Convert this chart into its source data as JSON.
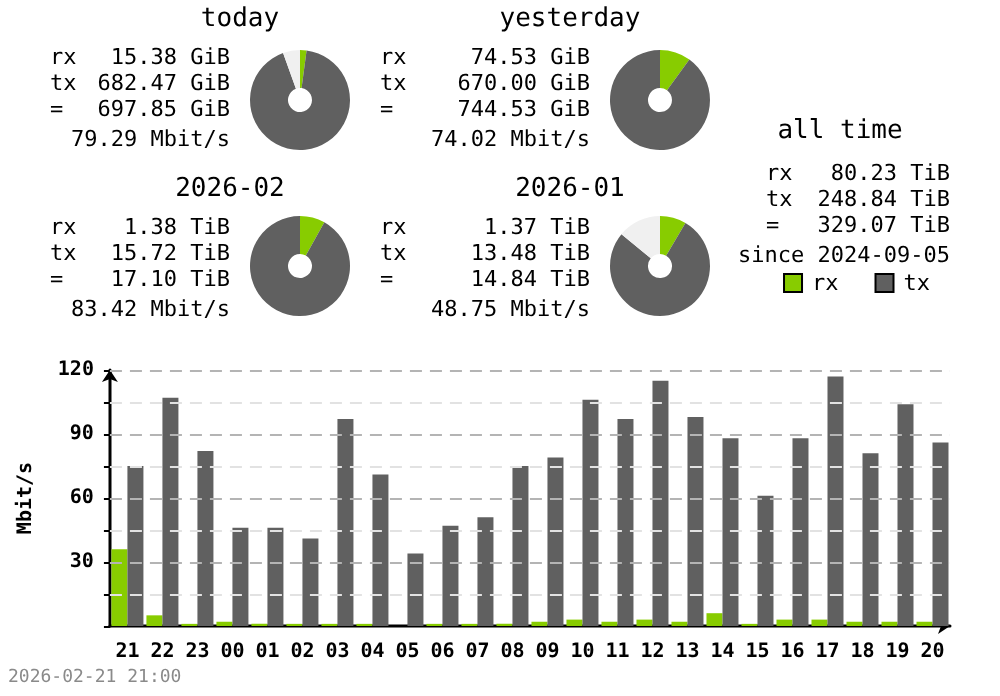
{
  "chart_data": [
    {
      "type": "donut",
      "title": "today",
      "categories": [
        null,
        null,
        null
      ],
      "values": [
        2.1,
        92.4,
        5.5
      ],
      "colors": [
        "#88cc00",
        "#606060",
        "#f0f0f0"
      ],
      "annotations": [
        "rx 15.38 GiB",
        "tx 682.47 GiB",
        "= 697.85 GiB",
        "79.29 Mbit/s"
      ]
    },
    {
      "type": "donut",
      "title": "yesterday",
      "categories": [
        null,
        null
      ],
      "values": [
        10.0,
        90.0
      ],
      "colors": [
        "#88cc00",
        "#606060"
      ],
      "annotations": [
        "rx 74.53 GiB",
        "tx 670.00 GiB",
        "= 744.53 GiB",
        "74.02 Mbit/s"
      ]
    },
    {
      "type": "other",
      "title": "all time",
      "annotations": [
        "rx 80.23 TiB",
        "tx 248.84 TiB",
        "= 329.07 TiB",
        "since 2024-09-05"
      ]
    },
    {
      "type": "donut",
      "title": "2026-02",
      "categories": [
        null,
        null
      ],
      "values": [
        8.1,
        91.9
      ],
      "colors": [
        "#88cc00",
        "#606060"
      ],
      "annotations": [
        "rx 1.38 TiB",
        "tx 15.72 TiB",
        "= 17.10 TiB",
        "83.42 Mbit/s"
      ]
    },
    {
      "type": "donut",
      "title": "2026-01",
      "categories": [
        null,
        null,
        null
      ],
      "values": [
        8.5,
        77.5,
        14
      ],
      "colors": [
        "#88cc00",
        "#606060",
        "#f0f0f0"
      ],
      "annotations": [
        "rx 1.37 TiB",
        "tx 13.48 TiB",
        "= 14.84 TiB",
        "48.75 Mbit/s"
      ]
    },
    {
      "type": "bar",
      "ylabel": "Mbit/s",
      "categories": [
        "21",
        "22",
        "23",
        "00",
        "01",
        "02",
        "03",
        "04",
        "05",
        "06",
        "07",
        "08",
        "09",
        "10",
        "11",
        "12",
        "13",
        "14",
        "15",
        "16",
        "17",
        "18",
        "19",
        "20"
      ],
      "series": [
        {
          "name": "rx",
          "color": "#88cc00",
          "values": [
            36,
            5,
            1,
            2,
            1,
            1,
            1,
            1,
            0,
            1,
            1,
            1,
            2,
            3,
            2,
            3,
            2,
            6,
            1,
            3,
            3,
            2,
            2,
            2
          ]
        },
        {
          "name": "tx",
          "color": "#606060",
          "values": [
            75,
            107,
            82,
            46,
            46,
            41,
            97,
            71,
            34,
            47,
            51,
            75,
            79,
            106,
            97,
            115,
            98,
            88,
            61,
            88,
            117,
            81,
            104,
            86
          ]
        }
      ],
      "ylim": [
        0,
        120
      ],
      "yticks": [
        {
          "value": 0,
          "label": null
        },
        {
          "value": 15,
          "label": null
        },
        30,
        {
          "value": 45,
          "label": null
        },
        60,
        {
          "value": 75,
          "label": null
        },
        90,
        {
          "value": 105,
          "label": null
        },
        120
      ],
      "grid": "y",
      "legend": "top right",
      "annotations": [
        "2026-02-21 21:00"
      ]
    }
  ]
}
